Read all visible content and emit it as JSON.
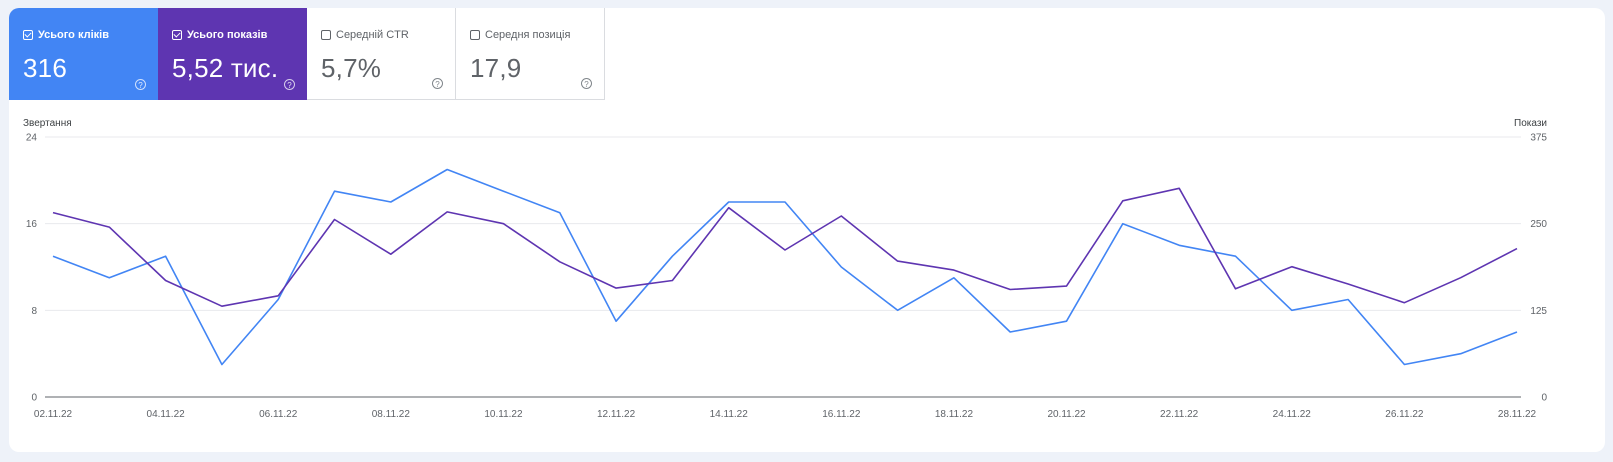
{
  "tiles": [
    {
      "label": "Усього кліків",
      "value": "316",
      "checked": true,
      "color": "#4285f4"
    },
    {
      "label": "Усього показів",
      "value": "5,52 тис.",
      "checked": true,
      "color": "#5e35b1"
    },
    {
      "label": "Середній CTR",
      "value": "5,7%",
      "checked": false,
      "color": "#ffffff"
    },
    {
      "label": "Середня позиція",
      "value": "17,9",
      "checked": false,
      "color": "#ffffff"
    }
  ],
  "help_glyph": "?",
  "chart_data": {
    "type": "line",
    "ylabel_left": "Звертання",
    "ylabel_right": "Покази",
    "ylim_left": [
      0,
      24
    ],
    "ylim_right": [
      0,
      375
    ],
    "yticks_left": [
      "24",
      "16",
      "8",
      "0"
    ],
    "yticks_right": [
      "375",
      "250",
      "125",
      "0"
    ],
    "x_tick_labels": [
      "02.11.22",
      "04.11.22",
      "06.11.22",
      "08.11.22",
      "10.11.22",
      "12.11.22",
      "14.11.22",
      "16.11.22",
      "18.11.22",
      "20.11.22",
      "22.11.22",
      "24.11.22",
      "26.11.22",
      "28.11.22"
    ],
    "grid": true,
    "series": [
      {
        "name": "Усього кліків",
        "axis": "left",
        "color": "#4285f4",
        "values": [
          13,
          11,
          13,
          3,
          9,
          19,
          18,
          21,
          19,
          17,
          7,
          13,
          18,
          18,
          12,
          8,
          11,
          6,
          7,
          16,
          14,
          13,
          8,
          9,
          3,
          4,
          6
        ]
      },
      {
        "name": "Усього показів",
        "axis": "right",
        "color": "#5e35b1",
        "values": [
          266,
          245,
          168,
          131,
          146,
          256,
          206,
          267,
          250,
          195,
          157,
          168,
          273,
          212,
          261,
          196,
          183,
          155,
          160,
          283,
          301,
          156,
          188,
          163,
          136,
          172,
          214
        ]
      }
    ]
  }
}
